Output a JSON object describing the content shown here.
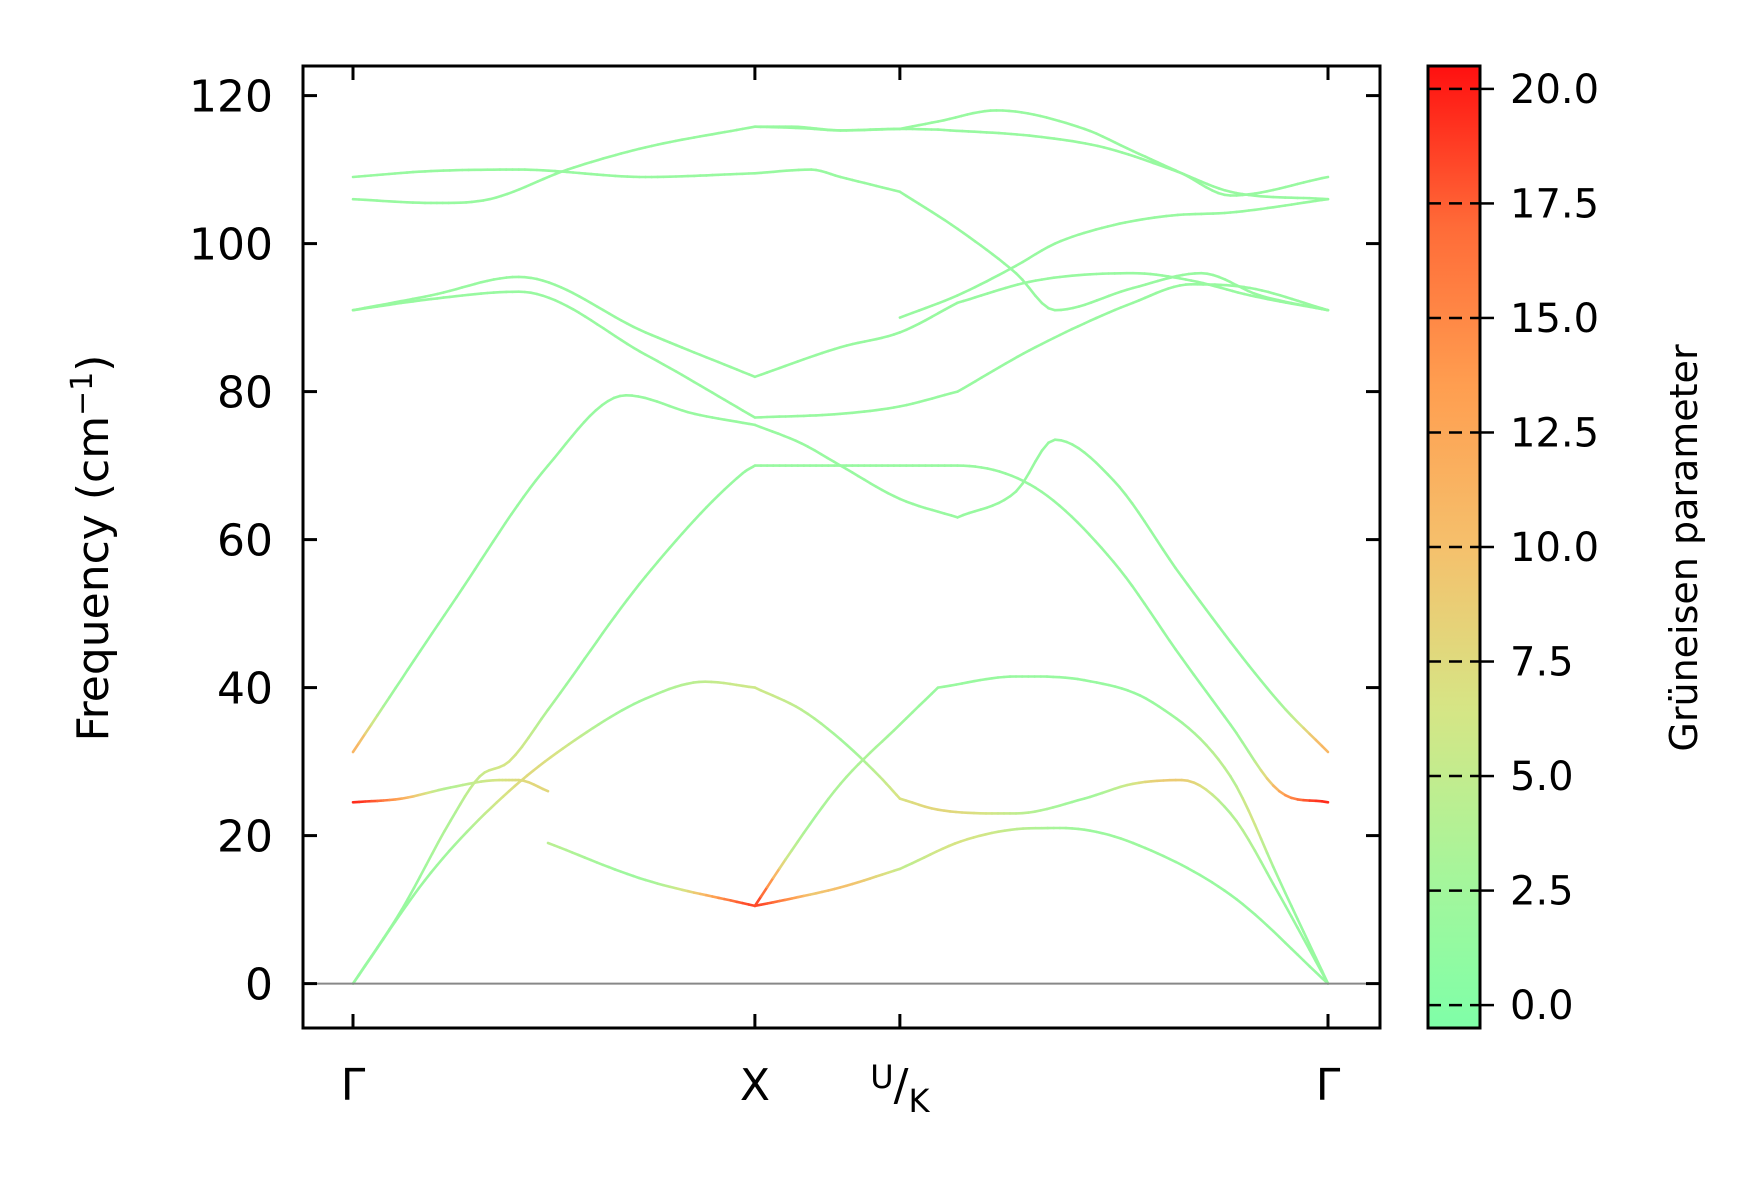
{
  "chart_data": {
    "type": "line",
    "ylabel": "Frequency (cm",
    "ylabel_sup": "−1",
    "ylabel_close": ")",
    "ylim": [
      -6,
      124
    ],
    "yticks": [
      0,
      20,
      40,
      60,
      80,
      100,
      120
    ],
    "grid": false,
    "x_ticks": [
      {
        "label": "Γ",
        "pos": 0
      },
      {
        "label": "X",
        "pos": 0.4122
      },
      {
        "label": "U",
        "label_sub": "K",
        "pos": 0.5609
      },
      {
        "label": "Γ",
        "pos": 1
      }
    ],
    "zero_line": 0,
    "colorbar": {
      "label": "Grüneisen parameter",
      "range": [
        -0.5,
        20.5
      ],
      "ticks": [
        "0.0",
        "2.5",
        "5.0",
        "7.5",
        "10.0",
        "12.5",
        "15.0",
        "17.5",
        "20.0"
      ],
      "tick_values": [
        0,
        2.5,
        5,
        7.5,
        10,
        12.5,
        15,
        17.5,
        20
      ],
      "colors": [
        "#7fffa8",
        "#a8f59a",
        "#d6e585",
        "#f5c06c",
        "#ff9e50",
        "#ff6b38",
        "#ff1010"
      ]
    },
    "series": [
      {
        "x": [
          0,
          0.08,
          0.16,
          0.24,
          0.3,
          0.3611,
          0.4122
        ],
        "y": [
          0,
          15,
          26,
          34,
          38.5,
          40.8,
          40
        ]
      },
      {
        "x": [
          0.4122,
          0.46,
          0.5,
          0.54,
          0.5609
        ],
        "y": [
          40,
          37,
          33,
          28,
          25
        ]
      },
      {
        "x": [
          0.5609,
          0.6,
          0.68,
          0.75,
          0.8,
          0.85,
          0.9,
          0.95,
          1
        ],
        "y": [
          25,
          23.5,
          23,
          25,
          27,
          27.5,
          23,
          12,
          0
        ]
      },
      {
        "x": [
          0,
          0.05,
          0.1,
          0.13,
          0.16,
          0.2,
          0.3,
          0.4,
          0.4122
        ],
        "y": [
          0,
          10,
          22,
          28,
          30,
          37,
          55,
          69,
          70
        ]
      },
      {
        "x": [
          0.4122,
          0.45,
          0.5,
          0.5609
        ],
        "y": [
          70,
          70,
          70,
          70
        ]
      },
      {
        "x": [
          0.5609,
          0.62,
          0.7,
          0.78,
          0.85,
          0.9,
          0.95,
          1
        ],
        "y": [
          70,
          70,
          67,
          57,
          44,
          35,
          26,
          24.5
        ]
      },
      {
        "x": [
          0,
          0.05,
          0.1,
          0.15,
          0.17,
          0.2
        ],
        "y": [
          24.5,
          25,
          26.5,
          27.5,
          27.5,
          26
        ]
      },
      {
        "x": [
          0.2,
          0.3,
          0.4122
        ],
        "y": [
          19,
          14,
          10.5
        ]
      },
      {
        "x": [
          0.4122,
          0.45,
          0.5,
          0.5609
        ],
        "y": [
          10.5,
          11.5,
          13,
          15.5
        ]
      },
      {
        "x": [
          0.5609,
          0.63,
          0.7,
          0.75,
          0.8,
          0.9,
          1
        ],
        "y": [
          15.5,
          19.5,
          21,
          20.8,
          19,
          12,
          0
        ]
      },
      {
        "x": [
          0.4122,
          0.45,
          0.5,
          0.5609,
          0.6
        ],
        "y": [
          10.5,
          18,
          27,
          35,
          40
        ]
      },
      {
        "x": [
          0.6,
          0.68,
          0.75,
          0.82,
          0.9,
          0.95,
          1
        ],
        "y": [
          40,
          41.5,
          41,
          38,
          28,
          14,
          0
        ]
      },
      {
        "x": [
          0,
          0.1,
          0.2,
          0.28,
          0.35,
          0.4122
        ],
        "y": [
          31.3,
          51,
          70,
          79.5,
          77,
          75.5
        ]
      },
      {
        "x": [
          0.4122,
          0.46,
          0.5,
          0.5609,
          0.62
        ],
        "y": [
          75.5,
          73,
          70,
          65.5,
          63
        ]
      },
      {
        "x": [
          0.62,
          0.68,
          0.72,
          0.78,
          0.85,
          0.95,
          1
        ],
        "y": [
          63,
          66.5,
          73.5,
          68,
          55,
          38,
          31.3
        ]
      },
      {
        "x": [
          0,
          0.08,
          0.17,
          0.3,
          0.4122
        ],
        "y": [
          91,
          93,
          95.5,
          88,
          82
        ]
      },
      {
        "x": [
          0.4122,
          0.5,
          0.5609,
          0.62
        ],
        "y": [
          82,
          86,
          88,
          92
        ]
      },
      {
        "x": [
          0.62,
          0.7,
          0.8,
          0.86,
          0.92,
          1
        ],
        "y": [
          92,
          95,
          96,
          95,
          93,
          91
        ]
      },
      {
        "x": [
          0,
          0.08,
          0.17,
          0.3,
          0.4122
        ],
        "y": [
          91,
          92.5,
          93.5,
          85,
          76.5
        ]
      },
      {
        "x": [
          0.4122,
          0.5,
          0.5609,
          0.62
        ],
        "y": [
          76.5,
          77,
          78,
          80
        ]
      },
      {
        "x": [
          0.62,
          0.7,
          0.8,
          0.86,
          0.92,
          1
        ],
        "y": [
          80,
          86,
          92,
          94.5,
          94,
          91
        ]
      },
      {
        "x": [
          0,
          0.08,
          0.17,
          0.3,
          0.4122
        ],
        "y": [
          109,
          109.8,
          110,
          109,
          109.5
        ]
      },
      {
        "x": [
          0.4122,
          0.47,
          0.5,
          0.5609
        ],
        "y": [
          109.5,
          110,
          109,
          107
        ]
      },
      {
        "x": [
          0.5609,
          0.62,
          0.68,
          0.72,
          0.8,
          0.87,
          0.93,
          1
        ],
        "y": [
          107,
          102,
          96,
          91,
          94,
          96,
          93,
          91
        ]
      },
      {
        "x": [
          0,
          0.08,
          0.14,
          0.22,
          0.3,
          0.4122
        ],
        "y": [
          106,
          105.5,
          106,
          110,
          113,
          115.8
        ]
      },
      {
        "x": [
          0.4122,
          0.46,
          0.5,
          0.5609,
          0.6
        ],
        "y": [
          115.8,
          115.6,
          115.3,
          115.5,
          115.4
        ]
      },
      {
        "x": [
          0.6,
          0.7,
          0.77,
          0.84,
          0.9,
          1
        ],
        "y": [
          115.4,
          114.5,
          113,
          110,
          107,
          106
        ]
      },
      {
        "x": [
          0.4122,
          0.45,
          0.5,
          0.5609
        ],
        "y": [
          115.8,
          115.8,
          115.3,
          115.5
        ]
      },
      {
        "x": [
          0.5609,
          0.6,
          0.66,
          0.75,
          0.8,
          0.85,
          0.9,
          1
        ],
        "y": [
          115.5,
          116.5,
          118,
          115.5,
          112.5,
          109.5,
          106.5,
          109
        ]
      },
      {
        "x": [
          0.5609,
          0.62,
          0.68,
          0.72,
          0.78,
          0.84,
          0.9,
          1
        ],
        "y": [
          90,
          93,
          97,
          100,
          102.5,
          103.8,
          104.2,
          106
        ]
      }
    ]
  }
}
